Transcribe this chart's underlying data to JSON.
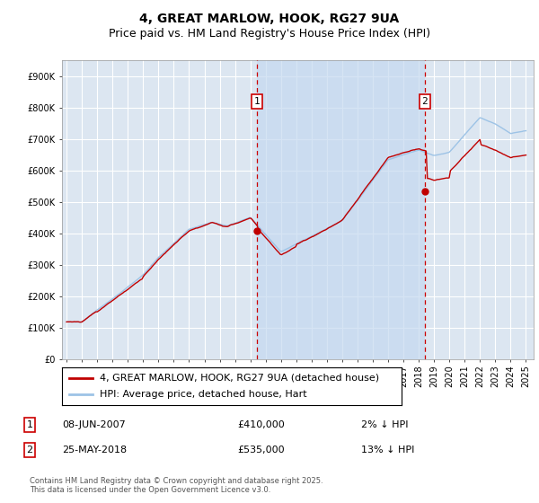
{
  "title": "4, GREAT MARLOW, HOOK, RG27 9UA",
  "subtitle": "Price paid vs. HM Land Registry's House Price Index (HPI)",
  "ylim": [
    0,
    950000
  ],
  "yticks": [
    0,
    100000,
    200000,
    300000,
    400000,
    500000,
    600000,
    700000,
    800000,
    900000
  ],
  "ytick_labels": [
    "£0",
    "£100K",
    "£200K",
    "£300K",
    "£400K",
    "£500K",
    "£600K",
    "£700K",
    "£800K",
    "£900K"
  ],
  "fig_bg_color": "#ffffff",
  "plot_bg_color": "#dce6f1",
  "shade_color": "#c5d9f0",
  "grid_color": "#ffffff",
  "red_line_color": "#c00000",
  "blue_line_color": "#9dc3e6",
  "marker1_date": 2007.45,
  "marker2_date": 2018.4,
  "marker1_label": "1",
  "marker2_label": "2",
  "marker1_price": 410000,
  "marker2_price": 535000,
  "legend_label_red": "4, GREAT MARLOW, HOOK, RG27 9UA (detached house)",
  "legend_label_blue": "HPI: Average price, detached house, Hart",
  "annotation1_date": "08-JUN-2007",
  "annotation1_price": "£410,000",
  "annotation1_hpi": "2% ↓ HPI",
  "annotation2_date": "25-MAY-2018",
  "annotation2_price": "£535,000",
  "annotation2_hpi": "13% ↓ HPI",
  "footer": "Contains HM Land Registry data © Crown copyright and database right 2025.\nThis data is licensed under the Open Government Licence v3.0.",
  "title_fontsize": 10,
  "subtitle_fontsize": 9,
  "tick_fontsize": 7,
  "legend_fontsize": 8,
  "ann_fontsize": 8,
  "footer_fontsize": 6
}
